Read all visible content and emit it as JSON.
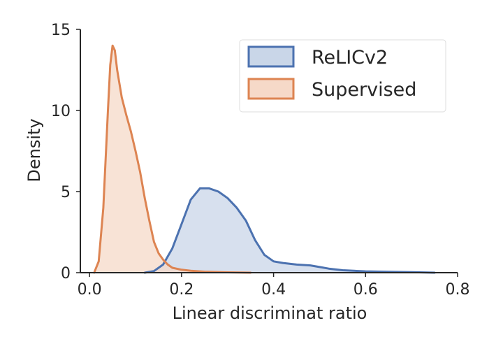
{
  "chart_data": {
    "type": "area",
    "title": "",
    "xlabel": "Linear discriminat ratio",
    "ylabel": "Density",
    "xlim": [
      -0.02,
      0.8
    ],
    "ylim": [
      0,
      15
    ],
    "xticks": [
      "0.0",
      "0.2",
      "0.4",
      "0.6",
      "0.8"
    ],
    "yticks": [
      "0",
      "5",
      "10",
      "15"
    ],
    "grid": false,
    "legend_position": "top-right",
    "series": [
      {
        "name": "ReLICv2",
        "line_color": "#4C72B0",
        "fill_color": "#C9D6E8",
        "x": [
          0.12,
          0.14,
          0.16,
          0.18,
          0.2,
          0.22,
          0.24,
          0.26,
          0.28,
          0.3,
          0.32,
          0.34,
          0.36,
          0.38,
          0.4,
          0.42,
          0.45,
          0.48,
          0.5,
          0.52,
          0.55,
          0.6,
          0.65,
          0.7,
          0.75
        ],
        "y": [
          0.0,
          0.1,
          0.5,
          1.5,
          3.0,
          4.5,
          5.2,
          5.2,
          5.0,
          4.6,
          4.0,
          3.2,
          2.0,
          1.1,
          0.7,
          0.6,
          0.5,
          0.45,
          0.35,
          0.25,
          0.15,
          0.08,
          0.05,
          0.03,
          0.0
        ]
      },
      {
        "name": "Supervised",
        "line_color": "#DD8452",
        "fill_color": "#F6D9C8",
        "x": [
          0.01,
          0.02,
          0.03,
          0.04,
          0.045,
          0.05,
          0.055,
          0.06,
          0.07,
          0.08,
          0.09,
          0.1,
          0.11,
          0.12,
          0.13,
          0.14,
          0.15,
          0.16,
          0.17,
          0.18,
          0.2,
          0.22,
          0.25,
          0.3,
          0.35
        ],
        "y": [
          0.0,
          0.7,
          4.0,
          10.0,
          12.8,
          14.0,
          13.7,
          12.5,
          10.8,
          9.7,
          8.7,
          7.5,
          6.2,
          4.6,
          3.2,
          1.9,
          1.2,
          0.8,
          0.5,
          0.3,
          0.18,
          0.12,
          0.06,
          0.02,
          0.0
        ]
      }
    ]
  }
}
